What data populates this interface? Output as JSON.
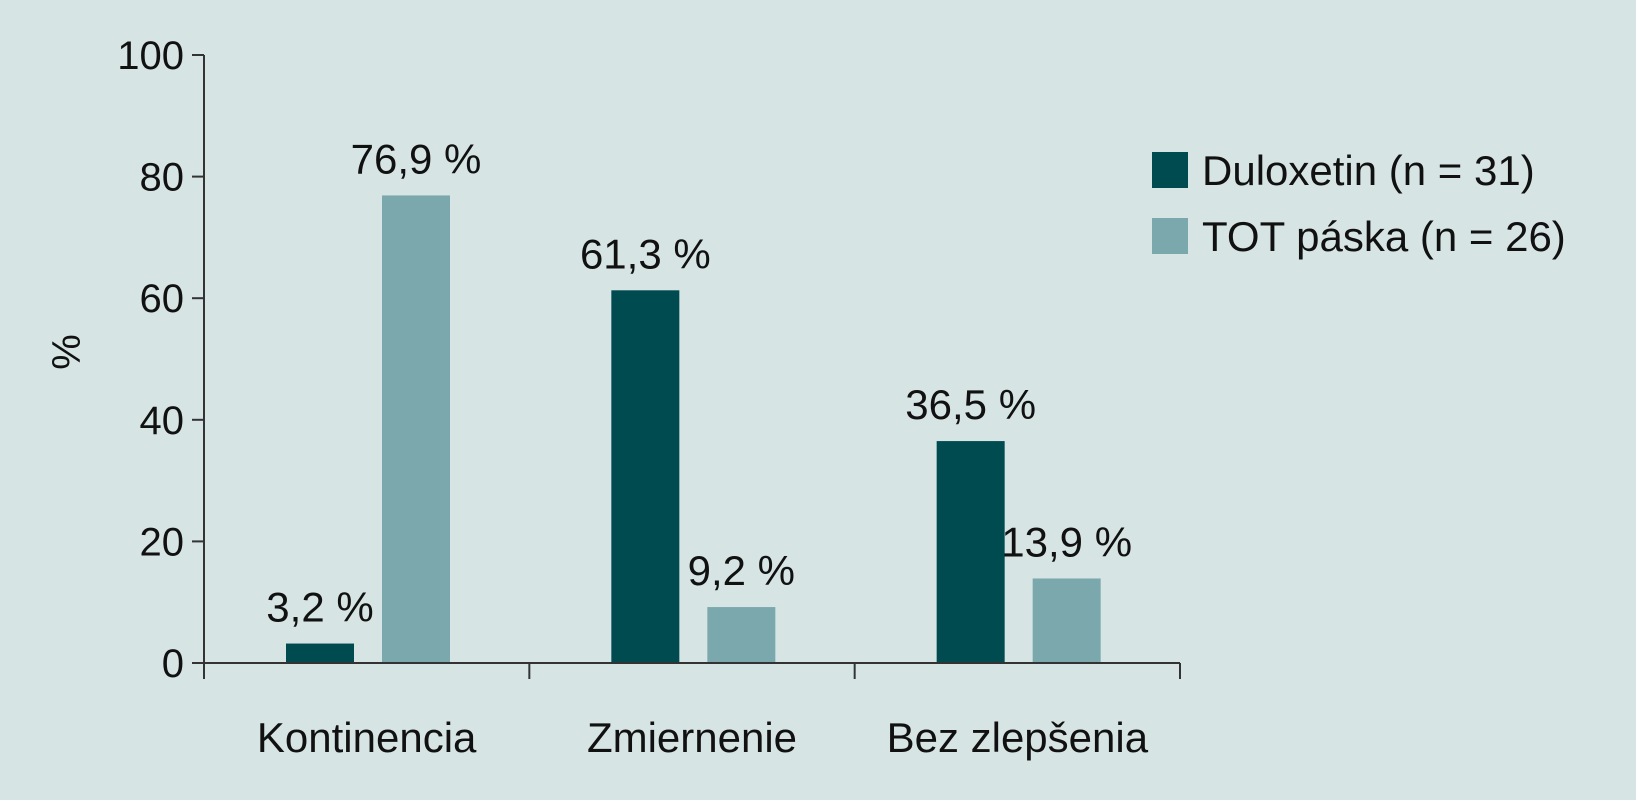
{
  "chart_data": {
    "type": "bar",
    "categories": [
      "Kontinencia",
      "Zmiernenie",
      "Bez zlepšenia"
    ],
    "series": [
      {
        "name": "Duloxetin (n = 31)",
        "values": [
          3.2,
          61.3,
          36.5
        ],
        "labels": [
          "3,2 %",
          "61,3 %",
          "36,5 %"
        ],
        "color": "#004b50"
      },
      {
        "name": "TOT páska (n = 26)",
        "values": [
          76.9,
          9.2,
          13.9
        ],
        "labels": [
          "76,9 %",
          "9,2 %",
          "13,9 %"
        ],
        "color": "#7aa8ad"
      }
    ],
    "ylabel": "%",
    "ylim": [
      0,
      100
    ],
    "yticks": [
      0,
      20,
      40,
      60,
      80,
      100
    ],
    "ytick_labels": [
      "0",
      "20",
      "40",
      "60",
      "80",
      "100"
    ],
    "grid": false,
    "legend_position": "right"
  },
  "colors": {
    "background": "#d6e4e4",
    "axis": "#333333"
  }
}
